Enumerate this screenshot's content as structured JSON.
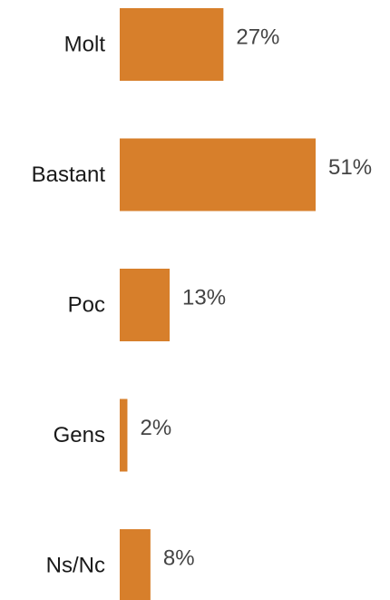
{
  "chart_data": {
    "type": "bar",
    "orientation": "horizontal",
    "categories": [
      "Molt",
      "Bastant",
      "Poc",
      "Gens",
      "Ns/Nc"
    ],
    "values": [
      27,
      51,
      13,
      2,
      8
    ],
    "value_labels": [
      "27%",
      "51%",
      "13%",
      "2%",
      "8%"
    ],
    "unit": "%",
    "title": "",
    "xlabel": "",
    "ylabel": "",
    "xlim": [
      0,
      51
    ],
    "grid": false,
    "legend": "none",
    "bar_color": "#D77F2B"
  }
}
